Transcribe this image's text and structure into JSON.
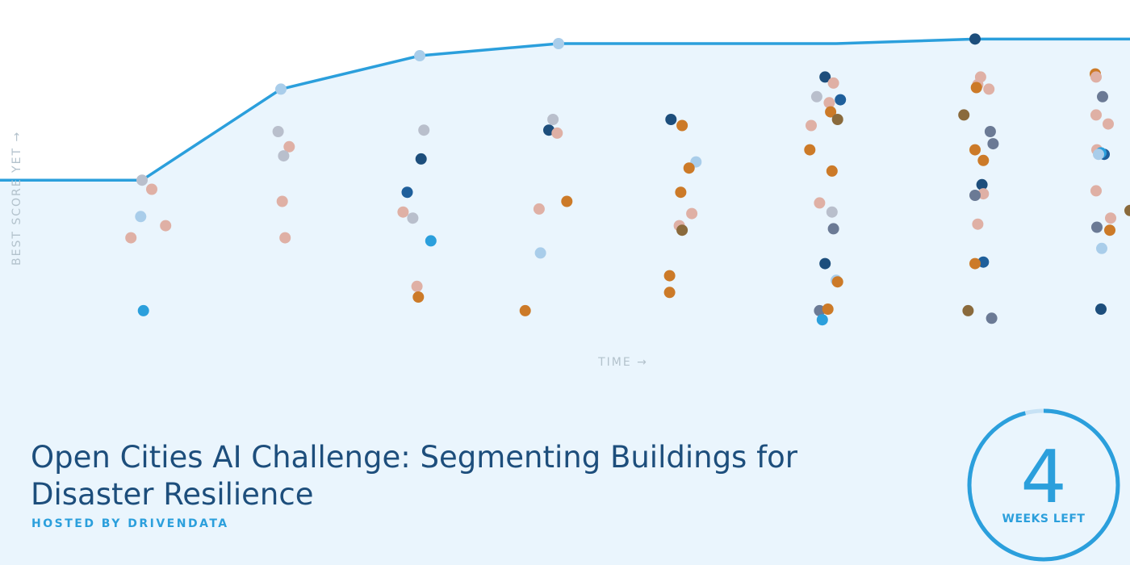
{
  "chart_data": {
    "type": "scatter",
    "xlabel": "TIME →",
    "ylabel": "BEST SCORE YET →",
    "best_score_line": [
      {
        "x": 0,
        "y": 55
      },
      {
        "x": 1,
        "y": 55
      },
      {
        "x": 2,
        "y": 85
      },
      {
        "x": 3,
        "y": 96
      },
      {
        "x": 4,
        "y": 100
      },
      {
        "x": 5,
        "y": 100
      },
      {
        "x": 6,
        "y": 100
      },
      {
        "x": 7,
        "y": 101.5
      },
      {
        "x": 8,
        "y": 101.5
      }
    ],
    "best_markers": [
      {
        "x": 1,
        "y": 55,
        "color": "#b9bfcc"
      },
      {
        "x": 2,
        "y": 85,
        "color": "#a9cdea"
      },
      {
        "x": 3,
        "y": 96,
        "color": "#a9cdea"
      },
      {
        "x": 4,
        "y": 100,
        "color": "#a9cdea"
      },
      {
        "x": 7,
        "y": 101.5,
        "color": "#1d4e7c"
      }
    ],
    "submissions": [
      {
        "x": 1.07,
        "y": 52,
        "color": "#dfb0a5"
      },
      {
        "x": 0.99,
        "y": 43,
        "color": "#a9cdea"
      },
      {
        "x": 1.17,
        "y": 40,
        "color": "#dfb0a5"
      },
      {
        "x": 0.92,
        "y": 36,
        "color": "#dfb0a5"
      },
      {
        "x": 1.01,
        "y": 12,
        "color": "#2b9fdc"
      },
      {
        "x": 1.98,
        "y": 71,
        "color": "#b9bfcc"
      },
      {
        "x": 2.06,
        "y": 66,
        "color": "#dfb0a5"
      },
      {
        "x": 2.02,
        "y": 63,
        "color": "#b9bfcc"
      },
      {
        "x": 2.01,
        "y": 48,
        "color": "#dfb0a5"
      },
      {
        "x": 2.03,
        "y": 36,
        "color": "#dfb0a5"
      },
      {
        "x": 3.03,
        "y": 71.5,
        "color": "#b9bfcc"
      },
      {
        "x": 3.01,
        "y": 62,
        "color": "#1d4e7c"
      },
      {
        "x": 2.91,
        "y": 51,
        "color": "#1f5f9b"
      },
      {
        "x": 2.88,
        "y": 44.5,
        "color": "#dfb0a5"
      },
      {
        "x": 2.95,
        "y": 42.5,
        "color": "#b9bfcc"
      },
      {
        "x": 3.08,
        "y": 35,
        "color": "#2b9fdc"
      },
      {
        "x": 2.98,
        "y": 20,
        "color": "#dfb0a5"
      },
      {
        "x": 2.99,
        "y": 16.5,
        "color": "#cc7a28"
      },
      {
        "x": 3.96,
        "y": 75,
        "color": "#b9bfcc"
      },
      {
        "x": 3.93,
        "y": 71.5,
        "color": "#1d4e7c"
      },
      {
        "x": 3.99,
        "y": 70.5,
        "color": "#dfb0a5"
      },
      {
        "x": 4.06,
        "y": 48,
        "color": "#cc7a28"
      },
      {
        "x": 3.86,
        "y": 45.5,
        "color": "#dfb0a5"
      },
      {
        "x": 3.87,
        "y": 31,
        "color": "#a9cdea"
      },
      {
        "x": 3.76,
        "y": 12,
        "color": "#cc7a28"
      },
      {
        "x": 4.81,
        "y": 75,
        "color": "#1d4e7c"
      },
      {
        "x": 4.89,
        "y": 73,
        "color": "#cc7a28"
      },
      {
        "x": 4.99,
        "y": 61,
        "color": "#a9cdea"
      },
      {
        "x": 4.94,
        "y": 59,
        "color": "#cc7a28"
      },
      {
        "x": 4.88,
        "y": 51,
        "color": "#cc7a28"
      },
      {
        "x": 4.96,
        "y": 44,
        "color": "#dfb0a5"
      },
      {
        "x": 4.87,
        "y": 40,
        "color": "#dfb0a5"
      },
      {
        "x": 4.89,
        "y": 38.5,
        "color": "#8a6a3c"
      },
      {
        "x": 4.8,
        "y": 23.5,
        "color": "#cc7a28"
      },
      {
        "x": 4.8,
        "y": 18,
        "color": "#cc7a28"
      },
      {
        "x": 5.92,
        "y": 89,
        "color": "#1d4e7c"
      },
      {
        "x": 5.98,
        "y": 87,
        "color": "#dfb0a5"
      },
      {
        "x": 5.86,
        "y": 82.5,
        "color": "#b9bfcc"
      },
      {
        "x": 5.95,
        "y": 80.5,
        "color": "#dfb0a5"
      },
      {
        "x": 6.03,
        "y": 81.5,
        "color": "#1f5f9b"
      },
      {
        "x": 5.96,
        "y": 77.5,
        "color": "#cc7a28"
      },
      {
        "x": 6.01,
        "y": 75,
        "color": "#8a6a3c"
      },
      {
        "x": 5.82,
        "y": 73,
        "color": "#dfb0a5"
      },
      {
        "x": 5.81,
        "y": 65,
        "color": "#cc7a28"
      },
      {
        "x": 5.97,
        "y": 58,
        "color": "#cc7a28"
      },
      {
        "x": 5.88,
        "y": 47.5,
        "color": "#dfb0a5"
      },
      {
        "x": 5.97,
        "y": 44.5,
        "color": "#b9bfcc"
      },
      {
        "x": 5.98,
        "y": 39,
        "color": "#6b7a95"
      },
      {
        "x": 5.92,
        "y": 27.5,
        "color": "#1d4e7c"
      },
      {
        "x": 6.0,
        "y": 22,
        "color": "#a9cdea"
      },
      {
        "x": 6.01,
        "y": 21.5,
        "color": "#cc7a28"
      },
      {
        "x": 5.88,
        "y": 12,
        "color": "#6b7a95"
      },
      {
        "x": 5.94,
        "y": 12.5,
        "color": "#cc7a28"
      },
      {
        "x": 5.9,
        "y": 9,
        "color": "#2b9fdc"
      },
      {
        "x": 7.04,
        "y": 89,
        "color": "#dfb0a5"
      },
      {
        "x": 7.02,
        "y": 86.5,
        "color": "#dfb0a5"
      },
      {
        "x": 7.01,
        "y": 85.5,
        "color": "#cc7a28"
      },
      {
        "x": 7.1,
        "y": 85,
        "color": "#dfb0a5"
      },
      {
        "x": 6.92,
        "y": 76.5,
        "color": "#8a6a3c"
      },
      {
        "x": 7.11,
        "y": 71,
        "color": "#6b7a95"
      },
      {
        "x": 7.13,
        "y": 67,
        "color": "#6b7a95"
      },
      {
        "x": 7.0,
        "y": 65,
        "color": "#cc7a28"
      },
      {
        "x": 7.06,
        "y": 61.5,
        "color": "#cc7a28"
      },
      {
        "x": 7.05,
        "y": 53.5,
        "color": "#1d4e7c"
      },
      {
        "x": 7.06,
        "y": 50.5,
        "color": "#dfb0a5"
      },
      {
        "x": 7.0,
        "y": 50,
        "color": "#6b7a95"
      },
      {
        "x": 7.02,
        "y": 40.5,
        "color": "#dfb0a5"
      },
      {
        "x": 7.06,
        "y": 28,
        "color": "#1f5f9b"
      },
      {
        "x": 7.0,
        "y": 27.5,
        "color": "#cc7a28"
      },
      {
        "x": 6.95,
        "y": 12,
        "color": "#8a6a3c"
      },
      {
        "x": 7.12,
        "y": 9.5,
        "color": "#6b7a95"
      },
      {
        "x": 8.01,
        "y": 90,
        "color": "#cc7a28"
      },
      {
        "x": 8.02,
        "y": 89,
        "color": "#dfb0a5"
      },
      {
        "x": 8.1,
        "y": 82.5,
        "color": "#6b7a95"
      },
      {
        "x": 8.02,
        "y": 76.5,
        "color": "#dfb0a5"
      },
      {
        "x": 8.17,
        "y": 73.5,
        "color": "#dfb0a5"
      },
      {
        "x": 8.03,
        "y": 65,
        "color": "#dfb0a5"
      },
      {
        "x": 7.93,
        "y": 63.5,
        "color": "#1f5f9b"
      },
      {
        "x": 8.08,
        "y": 64,
        "color": "#2b9fdc"
      },
      {
        "x": 8.05,
        "y": 63.5,
        "color": "#a9cdea"
      },
      {
        "x": 8.02,
        "y": 51.5,
        "color": "#dfb0a5"
      },
      {
        "x": 8.0,
        "y": 45,
        "color": "#8a6a3c"
      },
      {
        "x": 8.2,
        "y": 42.5,
        "color": "#dfb0a5"
      },
      {
        "x": 8.03,
        "y": 39.5,
        "color": "#6b7a95"
      },
      {
        "x": 8.19,
        "y": 38.5,
        "color": "#cc7a28"
      },
      {
        "x": 8.09,
        "y": 32.5,
        "color": "#a9cdea"
      },
      {
        "x": 8.08,
        "y": 12.5,
        "color": "#1d4e7c"
      }
    ]
  },
  "challenge": {
    "title": "Open Cities AI Challenge: Segmenting Buildings for Disaster Resilience",
    "host": "HOSTED BY DRIVENDATA"
  },
  "countdown": {
    "value": "4",
    "label": "WEEKS LEFT",
    "progress": 0.96
  },
  "colors": {
    "background": "#eaf5fd",
    "line": "#2b9fdc",
    "title": "#1d4e7c",
    "accent": "#2b9fdc",
    "ring_track": "#c7e2f5"
  }
}
